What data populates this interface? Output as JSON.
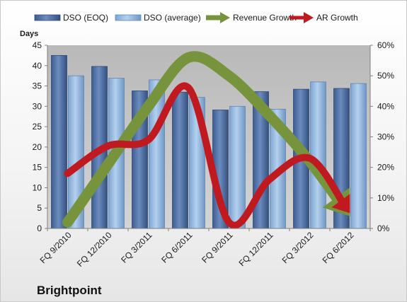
{
  "chart_data": {
    "type": "bar",
    "title": "Brightpoint",
    "ylabel": "Days",
    "categories": [
      "FQ 9/2010",
      "FQ 12/2010",
      "FQ 3/2011",
      "FQ 6/2011",
      "FQ 9/2011",
      "FQ 12/2011",
      "FQ 3/2012",
      "FQ 6/2012"
    ],
    "ylim": [
      0,
      45
    ],
    "y_ticks": [
      "0",
      "5",
      "10",
      "15",
      "20",
      "25",
      "30",
      "35",
      "40",
      "45"
    ],
    "y2lim": [
      0,
      0.6
    ],
    "y2_ticks": [
      "0%",
      "10%",
      "20%",
      "30%",
      "40%",
      "50%",
      "60%"
    ],
    "grid": false,
    "legend_position": "top",
    "series": [
      {
        "name": "DSO (EOQ)",
        "type": "bar",
        "axis": "left",
        "color": "#4f6fa3",
        "values": [
          42.5,
          39.8,
          33.8,
          33.5,
          29.1,
          33.6,
          34.2,
          34.4
        ]
      },
      {
        "name": "DSO (average)",
        "type": "bar",
        "axis": "left",
        "color": "#8fb4dc",
        "values": [
          37.5,
          36.9,
          36.5,
          32.2,
          30.0,
          29.3,
          36.0,
          35.6
        ]
      },
      {
        "name": "Revenue Growth",
        "type": "line",
        "axis": "right",
        "color": "#77933c",
        "values": [
          0.02,
          0.21,
          0.4,
          0.56,
          0.5,
          0.37,
          0.22,
          0.04
        ]
      },
      {
        "name": "AR Growth",
        "type": "line",
        "axis": "right",
        "color": "#c0191f",
        "values": [
          0.18,
          0.27,
          0.29,
          0.46,
          0.02,
          0.16,
          0.23,
          0.05
        ]
      }
    ]
  }
}
